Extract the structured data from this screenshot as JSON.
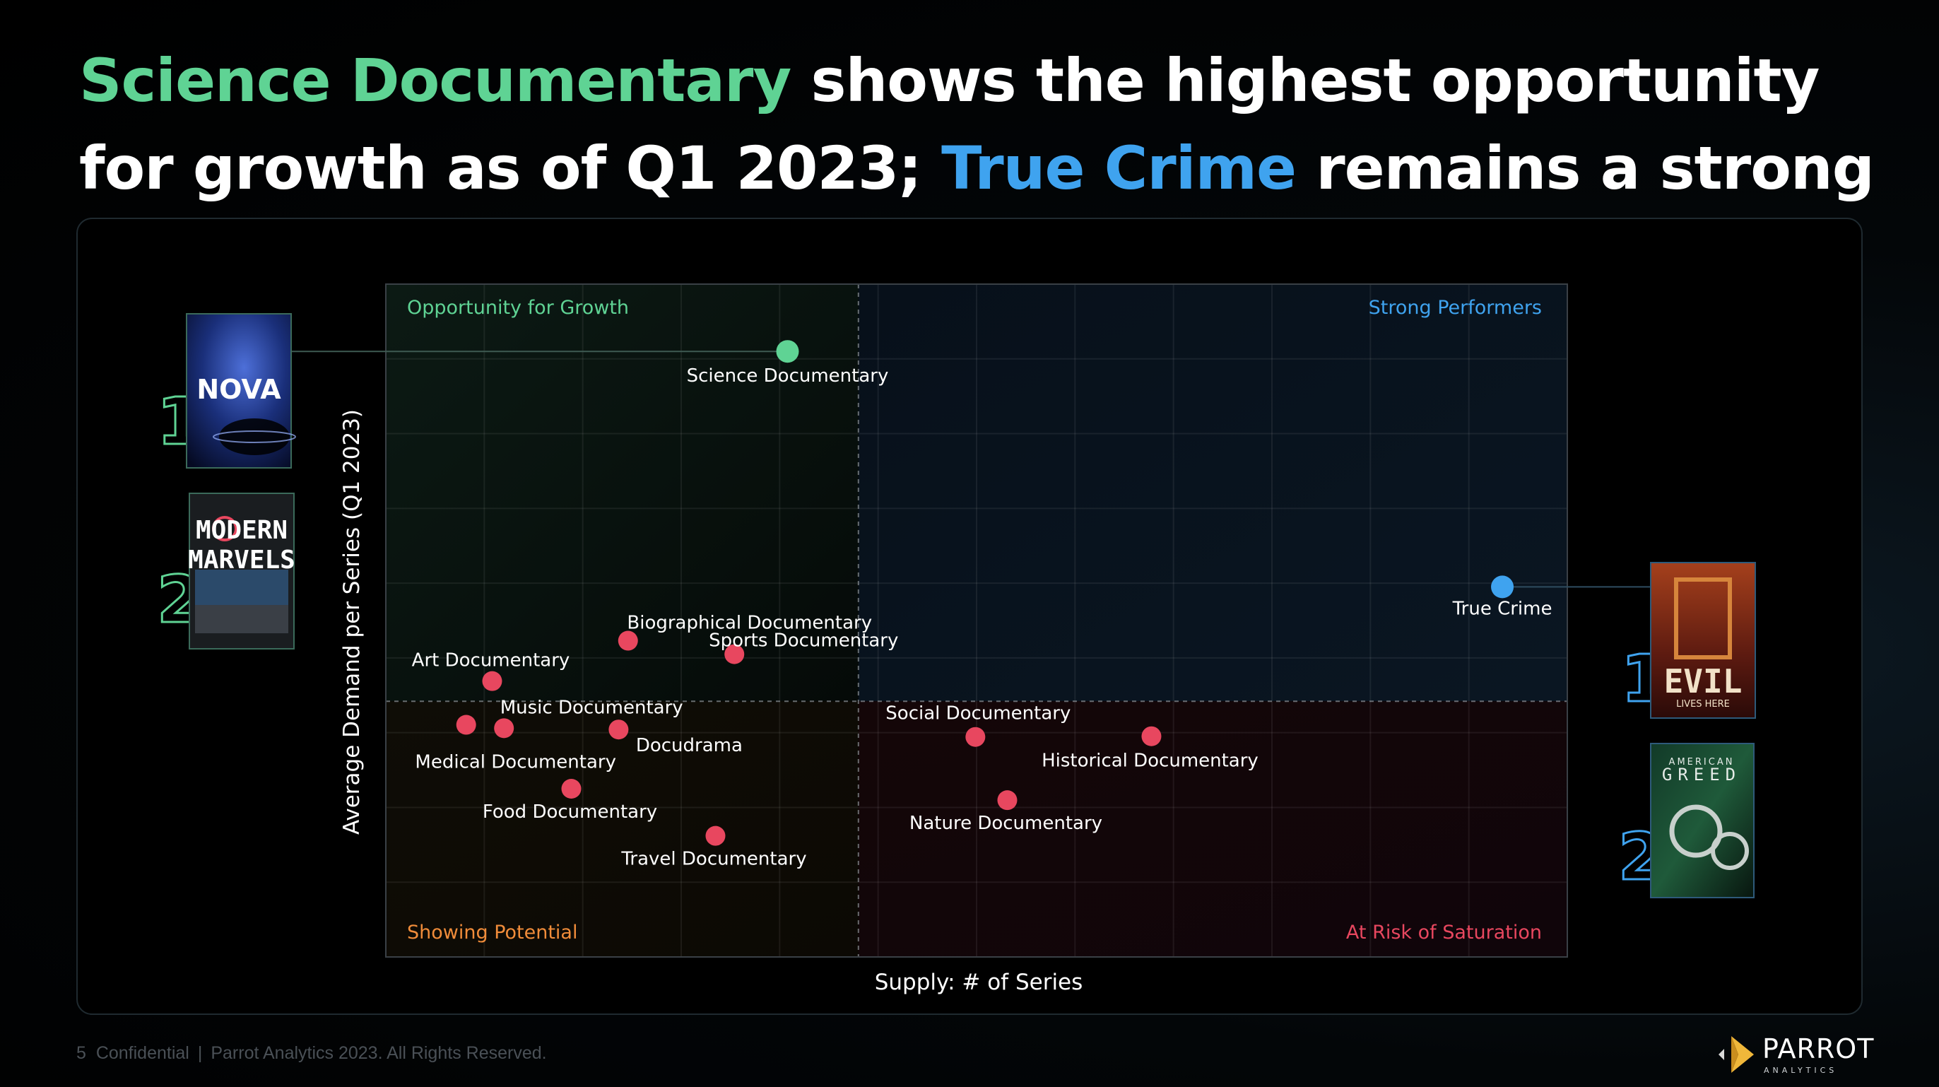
{
  "headline": {
    "part1": "Science Documentary",
    "part2": " shows the highest opportunity for growth as of Q1 2023; ",
    "part3": "True Crime",
    "part4": " remains a strong performer"
  },
  "colors": {
    "green": "#5fd394",
    "blue": "#3fa3ef",
    "red": "#e8475f",
    "orange": "#f08c3a",
    "redText": "#e8475f"
  },
  "chart_data": {
    "type": "scatter",
    "xlabel": "Supply: # of Series",
    "ylabel": "Average Demand per Series (Q1 2023)",
    "xlim": [
      0,
      100
    ],
    "ylim": [
      0,
      100
    ],
    "x_divider": 40,
    "y_divider": 38,
    "grid": true,
    "quadrants": {
      "top_left": "Opportunity for Growth",
      "top_right": "Strong Performers",
      "bottom_left": "Showing Potential",
      "bottom_right": "At Risk of Saturation"
    },
    "points": [
      {
        "label": "Science Documentary",
        "x": 34,
        "y": 90,
        "color": "green"
      },
      {
        "label": "True Crime",
        "x": 94.5,
        "y": 55,
        "color": "blue"
      },
      {
        "label": "Biographical Documentary",
        "x": 20.5,
        "y": 47,
        "color": "red"
      },
      {
        "label": "Sports Documentary",
        "x": 29.5,
        "y": 45,
        "color": "red"
      },
      {
        "label": "Art Documentary",
        "x": 9,
        "y": 41,
        "color": "red"
      },
      {
        "label": "Music Documentary",
        "x": 10,
        "y": 34,
        "color": "red"
      },
      {
        "label": "Medical Documentary",
        "x": 6.8,
        "y": 34.5,
        "color": "red"
      },
      {
        "label": "Docudrama",
        "x": 19.7,
        "y": 33.8,
        "color": "red"
      },
      {
        "label": "Food Documentary",
        "x": 15.7,
        "y": 25,
        "color": "red"
      },
      {
        "label": "Travel Documentary",
        "x": 27.9,
        "y": 18,
        "color": "red"
      },
      {
        "label": "Social Documentary",
        "x": 49.9,
        "y": 32.7,
        "color": "red"
      },
      {
        "label": "Historical Documentary",
        "x": 64.8,
        "y": 32.8,
        "color": "red"
      },
      {
        "label": "Nature Documentary",
        "x": 52.6,
        "y": 23.3,
        "color": "red"
      }
    ]
  },
  "posters": {
    "left": [
      {
        "rank": "1",
        "title": "NOVA"
      },
      {
        "rank": "2",
        "title_line1": "MODERN",
        "title_line2": "MARVELS"
      }
    ],
    "right": [
      {
        "rank": "1",
        "title": "EVIL",
        "subtitle": "LIVES HERE"
      },
      {
        "rank": "2",
        "title_line1": "AMERICAN",
        "title_line2": "GREED"
      }
    ]
  },
  "footer": {
    "page": "5",
    "confidential": "Confidential",
    "copyright": "Parrot Analytics 2023. All Rights Reserved."
  },
  "brand": {
    "name": "PARROT",
    "sub": "ANALYTICS"
  }
}
